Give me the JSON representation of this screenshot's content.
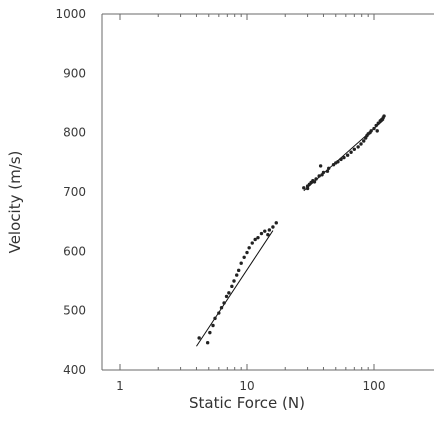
{
  "chart_data": {
    "type": "scatter",
    "title": "",
    "xlabel": "Static Force (N)",
    "ylabel": "Velocity (m/s)",
    "x_scale": "log",
    "xlim": [
      1,
      130
    ],
    "ylim": [
      400,
      1000
    ],
    "x_ticks": [
      1,
      10,
      100
    ],
    "y_ticks": [
      400,
      500,
      600,
      700,
      800,
      900,
      1000
    ],
    "grid": false,
    "legend": "none",
    "colors": {
      "axis": "#6a6a6a",
      "points": "#222222",
      "fit": "#111111",
      "text": "#3a3a3a"
    },
    "series": [
      {
        "points": [
          [
            4.2,
            454
          ],
          [
            4.9,
            446
          ],
          [
            5.1,
            463
          ],
          [
            5.4,
            475
          ],
          [
            5.6,
            487
          ],
          [
            6.0,
            496
          ],
          [
            6.3,
            505
          ],
          [
            6.6,
            513
          ],
          [
            6.9,
            524
          ],
          [
            7.2,
            530
          ],
          [
            7.6,
            541
          ],
          [
            7.9,
            550
          ],
          [
            8.3,
            560
          ],
          [
            8.6,
            568
          ],
          [
            9.0,
            580
          ],
          [
            9.5,
            590
          ],
          [
            10.0,
            598
          ],
          [
            10.4,
            606
          ],
          [
            11.0,
            614
          ],
          [
            11.6,
            620
          ],
          [
            12.2,
            623
          ],
          [
            13.0,
            630
          ],
          [
            13.8,
            634
          ],
          [
            14.6,
            628
          ],
          [
            15.0,
            636
          ],
          [
            16.0,
            641
          ],
          [
            17.0,
            648
          ],
          [
            28,
            707
          ],
          [
            30,
            710
          ],
          [
            31,
            713
          ],
          [
            32,
            716
          ],
          [
            33,
            719
          ],
          [
            35,
            722
          ],
          [
            37,
            727
          ],
          [
            40,
            733
          ],
          [
            44,
            740
          ],
          [
            48,
            746
          ],
          [
            50,
            749
          ],
          [
            52,
            751
          ],
          [
            55,
            755
          ],
          [
            58,
            758
          ],
          [
            62,
            762
          ],
          [
            66,
            767
          ],
          [
            70,
            772
          ],
          [
            75,
            776
          ],
          [
            79,
            781
          ],
          [
            83,
            786
          ],
          [
            86,
            791
          ],
          [
            88,
            795
          ],
          [
            90,
            798
          ],
          [
            95,
            803
          ],
          [
            100,
            807
          ],
          [
            104,
            812
          ],
          [
            108,
            816
          ],
          [
            112,
            820
          ],
          [
            115,
            822
          ],
          [
            118,
            825
          ],
          [
            120,
            828
          ],
          [
            106,
            803
          ],
          [
            93,
            800
          ],
          [
            43,
            735
          ],
          [
            39,
            729
          ],
          [
            34,
            717
          ],
          [
            30,
            706
          ],
          [
            38,
            744
          ]
        ]
      }
    ],
    "fit_lines": [
      {
        "x": [
          4.0,
          16.0
        ],
        "y": [
          440,
          635
        ]
      },
      {
        "x": [
          28.0,
          120.0
        ],
        "y": [
          702,
          822
        ]
      }
    ]
  }
}
